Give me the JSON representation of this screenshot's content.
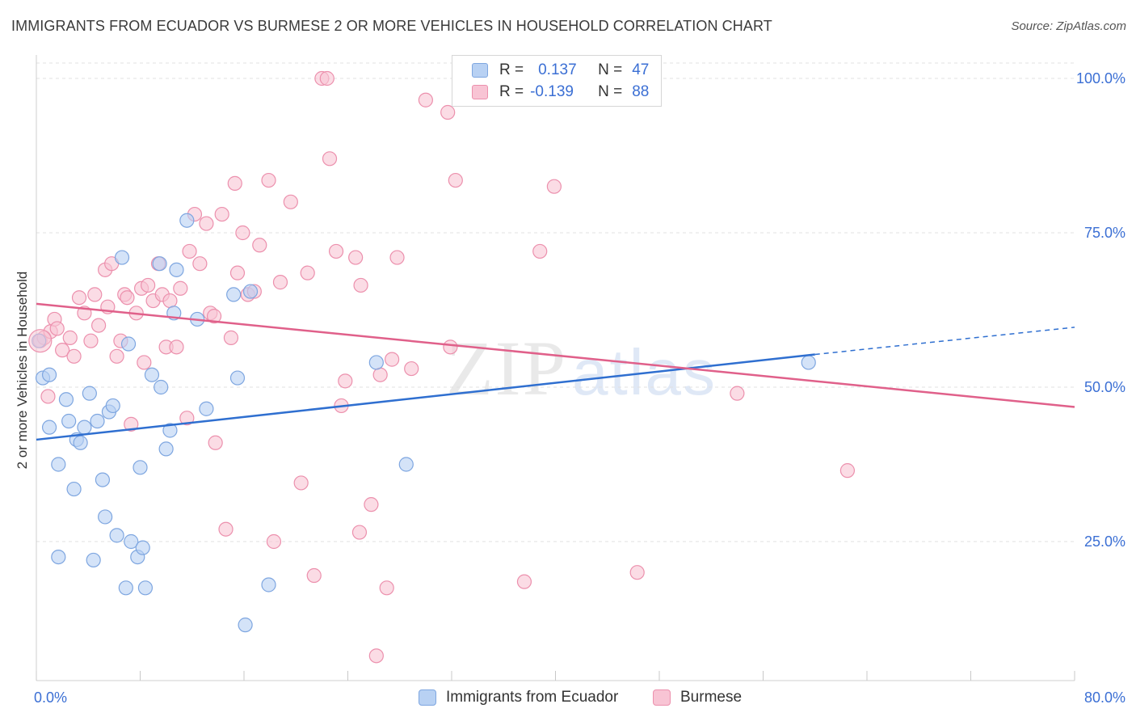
{
  "title": "IMMIGRANTS FROM ECUADOR VS BURMESE 2 OR MORE VEHICLES IN HOUSEHOLD CORRELATION CHART",
  "source": "Source: ZipAtlas.com",
  "watermark": {
    "zip": "ZIP",
    "atlas": "atlas"
  },
  "legend": {
    "r_label": "R =",
    "n_label": "N =",
    "rows": [
      {
        "series": "Immigrants from Ecuador",
        "r": "0.137",
        "n": "47"
      },
      {
        "series": "Burmese",
        "r": "-0.139",
        "n": "88"
      }
    ]
  },
  "colors": {
    "ecuador_fill": "#b8d1f3",
    "ecuador_stroke": "#7ea6e0",
    "ecuador_line": "#2f6fd0",
    "burmese_fill": "#f8c4d4",
    "burmese_stroke": "#ec90ad",
    "burmese_line": "#e0608a",
    "grid": "#e0e0e0",
    "axis_text": "#3b6fd4"
  },
  "chart_data": {
    "type": "scatter",
    "title": "IMMIGRANTS FROM ECUADOR VS BURMESE 2 OR MORE VEHICLES IN HOUSEHOLD CORRELATION CHART",
    "xlabel": "",
    "ylabel": "2 or more Vehicles in Household",
    "xlim": [
      0,
      80
    ],
    "ylim": [
      0,
      105
    ],
    "x_tick_labels": [
      "0.0%",
      "80.0%"
    ],
    "y_ticks": [
      25,
      50,
      75,
      100
    ],
    "y_tick_labels": [
      "25.0%",
      "50.0%",
      "75.0%",
      "100.0%"
    ],
    "grid": true,
    "legend_position": "top-center",
    "series": [
      {
        "name": "Immigrants from Ecuador",
        "trend": {
          "x": [
            0,
            60
          ],
          "y": [
            41.5,
            55.3
          ],
          "dashed_to": [
            80,
            59.7
          ]
        },
        "points": [
          [
            0.2,
            57.5
          ],
          [
            0.5,
            51.5
          ],
          [
            1.0,
            52.0
          ],
          [
            1.0,
            43.5
          ],
          [
            1.7,
            37.5
          ],
          [
            1.7,
            22.5
          ],
          [
            2.3,
            48.0
          ],
          [
            2.5,
            44.5
          ],
          [
            2.9,
            33.5
          ],
          [
            3.1,
            41.5
          ],
          [
            3.4,
            41.0
          ],
          [
            3.7,
            43.5
          ],
          [
            4.1,
            49.0
          ],
          [
            4.4,
            22.0
          ],
          [
            4.7,
            44.5
          ],
          [
            5.1,
            35.0
          ],
          [
            5.3,
            29.0
          ],
          [
            5.6,
            46.0
          ],
          [
            5.9,
            47.0
          ],
          [
            6.2,
            26.0
          ],
          [
            6.6,
            71.0
          ],
          [
            6.9,
            17.5
          ],
          [
            7.1,
            57.0
          ],
          [
            7.3,
            25.0
          ],
          [
            7.8,
            22.5
          ],
          [
            8.0,
            37.0
          ],
          [
            8.2,
            24.0
          ],
          [
            8.4,
            17.5
          ],
          [
            8.9,
            52.0
          ],
          [
            9.5,
            70.0
          ],
          [
            9.6,
            50.0
          ],
          [
            10.0,
            40.0
          ],
          [
            10.3,
            43.0
          ],
          [
            10.6,
            62.0
          ],
          [
            10.8,
            69.0
          ],
          [
            11.6,
            77.0
          ],
          [
            12.4,
            61.0
          ],
          [
            13.1,
            46.5
          ],
          [
            15.2,
            65.0
          ],
          [
            15.5,
            51.5
          ],
          [
            16.5,
            65.5
          ],
          [
            17.9,
            18.0
          ],
          [
            16.1,
            11.5
          ],
          [
            26.2,
            54.0
          ],
          [
            28.5,
            37.5
          ],
          [
            59.5,
            54.0
          ]
        ]
      },
      {
        "name": "Burmese",
        "trend": {
          "x": [
            0,
            80
          ],
          "y": [
            63.5,
            46.8
          ]
        },
        "points": [
          [
            0.3,
            57.5
          ],
          [
            0.6,
            58.0
          ],
          [
            0.9,
            48.5
          ],
          [
            1.1,
            59.0
          ],
          [
            1.4,
            61.0
          ],
          [
            1.6,
            59.5
          ],
          [
            2.0,
            56.0
          ],
          [
            2.6,
            58.0
          ],
          [
            2.9,
            55.0
          ],
          [
            3.3,
            64.5
          ],
          [
            3.7,
            62.0
          ],
          [
            4.2,
            57.5
          ],
          [
            4.5,
            65.0
          ],
          [
            4.8,
            60.0
          ],
          [
            5.3,
            69.0
          ],
          [
            5.5,
            63.0
          ],
          [
            5.8,
            70.0
          ],
          [
            6.2,
            55.0
          ],
          [
            6.5,
            57.5
          ],
          [
            6.8,
            65.0
          ],
          [
            7.0,
            64.5
          ],
          [
            7.3,
            44.0
          ],
          [
            7.7,
            62.0
          ],
          [
            8.1,
            66.0
          ],
          [
            8.3,
            54.0
          ],
          [
            8.6,
            66.5
          ],
          [
            9.0,
            64.0
          ],
          [
            9.4,
            70.0
          ],
          [
            9.7,
            65.0
          ],
          [
            10.0,
            56.5
          ],
          [
            10.3,
            64.0
          ],
          [
            10.8,
            56.5
          ],
          [
            11.1,
            66.0
          ],
          [
            11.6,
            45.0
          ],
          [
            11.8,
            72.0
          ],
          [
            12.2,
            78.0
          ],
          [
            12.6,
            70.0
          ],
          [
            13.1,
            76.5
          ],
          [
            13.4,
            62.0
          ],
          [
            13.7,
            61.5
          ],
          [
            13.8,
            41.0
          ],
          [
            14.3,
            78.0
          ],
          [
            14.6,
            27.0
          ],
          [
            15.0,
            58.0
          ],
          [
            15.3,
            83.0
          ],
          [
            15.5,
            68.5
          ],
          [
            15.9,
            75.0
          ],
          [
            16.3,
            65.0
          ],
          [
            16.8,
            65.5
          ],
          [
            17.2,
            73.0
          ],
          [
            17.9,
            83.5
          ],
          [
            18.3,
            25.0
          ],
          [
            18.8,
            67.0
          ],
          [
            19.6,
            80.0
          ],
          [
            20.4,
            34.5
          ],
          [
            20.9,
            68.5
          ],
          [
            21.4,
            19.5
          ],
          [
            22.0,
            100.0
          ],
          [
            22.4,
            100.0
          ],
          [
            22.6,
            87.0
          ],
          [
            23.1,
            72.0
          ],
          [
            23.5,
            47.0
          ],
          [
            23.8,
            51.0
          ],
          [
            24.6,
            71.0
          ],
          [
            24.9,
            26.5
          ],
          [
            25.0,
            66.5
          ],
          [
            25.8,
            31.0
          ],
          [
            26.2,
            6.5
          ],
          [
            26.5,
            52.0
          ],
          [
            27.0,
            17.5
          ],
          [
            27.4,
            54.5
          ],
          [
            27.8,
            71.0
          ],
          [
            28.9,
            53.0
          ],
          [
            30.0,
            96.5
          ],
          [
            31.7,
            94.5
          ],
          [
            31.9,
            56.5
          ],
          [
            32.3,
            83.5
          ],
          [
            37.6,
            18.5
          ],
          [
            38.8,
            72.0
          ],
          [
            39.9,
            82.5
          ],
          [
            46.3,
            20.0
          ],
          [
            54.0,
            49.0
          ],
          [
            62.5,
            36.5
          ]
        ]
      }
    ]
  }
}
